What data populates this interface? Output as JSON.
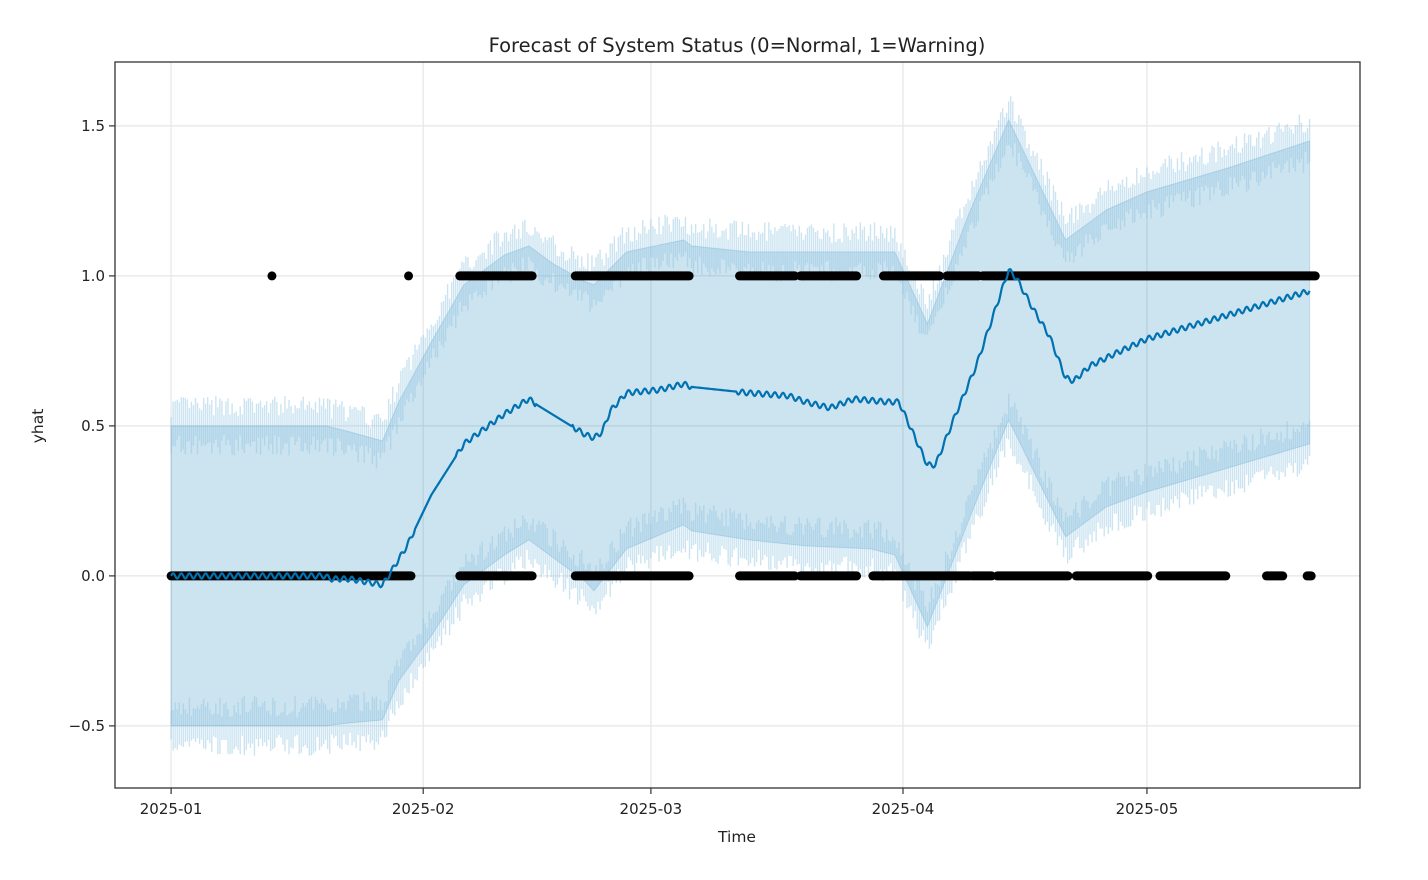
{
  "chart_data": {
    "type": "line",
    "title": "Forecast of System Status (0=Normal, 1=Warning)",
    "xlabel": "Time",
    "ylabel": "yhat",
    "x_unit": "days since 2025-01-01",
    "xlim": [
      -6.9,
      146.2
    ],
    "ylim": [
      -0.707,
      1.713
    ],
    "grid": true,
    "x_ticks": [
      {
        "label": "2025-01",
        "value": 0
      },
      {
        "label": "2025-02",
        "value": 31
      },
      {
        "label": "2025-03",
        "value": 59
      },
      {
        "label": "2025-04",
        "value": 90
      },
      {
        "label": "2025-05",
        "value": 120
      }
    ],
    "y_ticks": [
      {
        "label": "−0.5",
        "value": -0.5
      },
      {
        "label": "0.0",
        "value": 0.0
      },
      {
        "label": "0.5",
        "value": 0.5
      },
      {
        "label": "1.0",
        "value": 1.0
      },
      {
        "label": "1.5",
        "value": 1.5
      }
    ],
    "colors": {
      "forecast_line": "#0072b2",
      "uncertainty_band": "#0072b2",
      "observations": "#000000",
      "grid": "#e6e6e6",
      "axis": "#333333"
    },
    "series": [
      {
        "name": "yhat",
        "kind": "line",
        "points": [
          [
            0,
            0.0
          ],
          [
            19,
            0.0
          ],
          [
            19.5,
            -0.01
          ],
          [
            22,
            -0.01
          ],
          [
            24,
            -0.02
          ],
          [
            26,
            -0.03
          ],
          [
            26.5,
            -0.01
          ],
          [
            29,
            0.1
          ],
          [
            32,
            0.27
          ],
          [
            36,
            0.44
          ],
          [
            38,
            0.48
          ],
          [
            41,
            0.54
          ],
          [
            44,
            0.59
          ],
          [
            45,
            0.57
          ],
          [
            51,
            0.47
          ],
          [
            52,
            0.46
          ],
          [
            53,
            0.48
          ],
          [
            54,
            0.55
          ],
          [
            56,
            0.61
          ],
          [
            60,
            0.62
          ],
          [
            63,
            0.64
          ],
          [
            64,
            0.63
          ],
          [
            71,
            0.61
          ],
          [
            76,
            0.6
          ],
          [
            78,
            0.58
          ],
          [
            81,
            0.56
          ],
          [
            84,
            0.59
          ],
          [
            88,
            0.58
          ],
          [
            89.5,
            0.58
          ],
          [
            92,
            0.43
          ],
          [
            93,
            0.37
          ],
          [
            94,
            0.37
          ],
          [
            96.5,
            0.54
          ],
          [
            99,
            0.7
          ],
          [
            103,
            1.02
          ],
          [
            104,
            0.99
          ],
          [
            106,
            0.89
          ],
          [
            108,
            0.8
          ],
          [
            110,
            0.66
          ],
          [
            111,
            0.65
          ],
          [
            113,
            0.7
          ],
          [
            116,
            0.74
          ],
          [
            120,
            0.79
          ],
          [
            125,
            0.83
          ],
          [
            130,
            0.87
          ],
          [
            135,
            0.91
          ],
          [
            140,
            0.95
          ]
        ]
      },
      {
        "name": "yhat_uncertainty",
        "kind": "band",
        "points": [
          [
            0,
            0.5,
            -0.5
          ],
          [
            19,
            0.5,
            -0.5
          ],
          [
            22,
            0.48,
            -0.49
          ],
          [
            26,
            0.45,
            -0.48
          ],
          [
            28,
            0.58,
            -0.35
          ],
          [
            32,
            0.78,
            -0.2
          ],
          [
            36,
            0.97,
            -0.03
          ],
          [
            41,
            1.07,
            0.07
          ],
          [
            44,
            1.1,
            0.12
          ],
          [
            47,
            1.04,
            0.06
          ],
          [
            51,
            0.98,
            -0.02
          ],
          [
            52,
            0.97,
            -0.05
          ],
          [
            56,
            1.08,
            0.09
          ],
          [
            63,
            1.12,
            0.17
          ],
          [
            64,
            1.1,
            0.15
          ],
          [
            71,
            1.08,
            0.12
          ],
          [
            78,
            1.08,
            0.1
          ],
          [
            86,
            1.08,
            0.09
          ],
          [
            89,
            1.08,
            0.07
          ],
          [
            93,
            0.84,
            -0.17
          ],
          [
            98,
            1.2,
            0.18
          ],
          [
            103,
            1.52,
            0.52
          ],
          [
            110,
            1.12,
            0.13
          ],
          [
            115,
            1.22,
            0.23
          ],
          [
            120,
            1.28,
            0.28
          ],
          [
            130,
            1.36,
            0.36
          ],
          [
            140,
            1.45,
            0.44
          ]
        ]
      },
      {
        "name": "observations",
        "kind": "scatter",
        "y1_points": [
          12.4,
          29.2
        ],
        "y1_segments": [
          [
            35.5,
            44.4
          ],
          [
            49.7,
            63.7
          ],
          [
            69.9,
            76.7
          ],
          [
            77.4,
            84.3
          ],
          [
            87.6,
            94.5
          ],
          [
            95.4,
            99.3
          ],
          [
            99.8,
            140.7
          ]
        ],
        "y0_segments": [
          [
            0,
            29.5
          ],
          [
            35.5,
            44.4
          ],
          [
            49.7,
            63.7
          ],
          [
            69.9,
            76.7
          ],
          [
            77.4,
            84.3
          ],
          [
            86.3,
            98.2
          ],
          [
            98.5,
            100.9
          ],
          [
            101.6,
            110.3
          ],
          [
            111.3,
            120.1
          ],
          [
            121.6,
            129.7
          ],
          [
            134.7,
            136.7
          ],
          [
            139.7,
            140.2
          ]
        ]
      }
    ]
  }
}
